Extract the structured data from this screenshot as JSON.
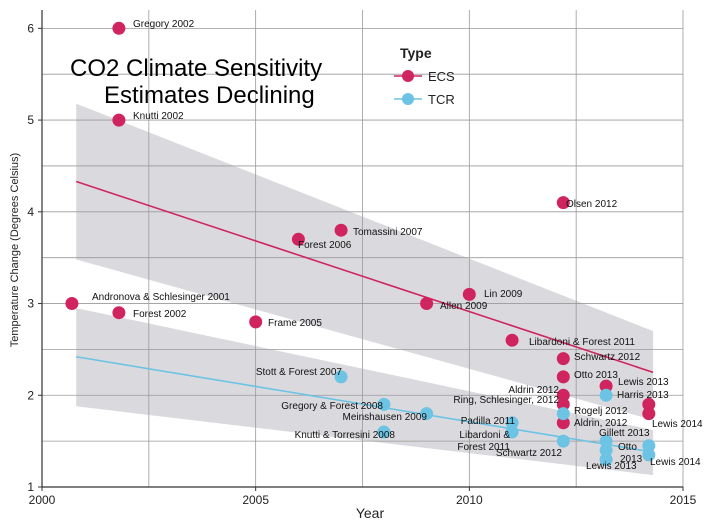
{
  "chart_data": {
    "type": "scatter",
    "title_lines": [
      "CO2 Climate Sensitivity",
      "Estimates Declining"
    ],
    "xlabel": "Year",
    "ylabel": "Temperature Change (Degrees Celsius)",
    "xlim": [
      2000,
      2015
    ],
    "ylim": [
      1,
      6.2
    ],
    "x_ticks": [
      "2000",
      "2005",
      "2010",
      "2015"
    ],
    "y_ticks": [
      "1",
      "2",
      "3",
      "4",
      "5",
      "6"
    ],
    "grid": true,
    "legend": {
      "title": "Type",
      "placement": "top-center"
    },
    "series": [
      {
        "name": "ECS",
        "color": "#d0245e",
        "points": [
          {
            "x": 2001.8,
            "y": 6.0,
            "label": "Gregory 2002"
          },
          {
            "x": 2001.8,
            "y": 5.0,
            "label": "Knutti 2002"
          },
          {
            "x": 2000.7,
            "y": 3.0,
            "label": "Andronova & Schlesinger 2001"
          },
          {
            "x": 2001.8,
            "y": 2.9,
            "label": "Forest 2002"
          },
          {
            "x": 2005.0,
            "y": 2.8,
            "label": "Frame 2005"
          },
          {
            "x": 2006.0,
            "y": 3.7,
            "label": "Forest 2006"
          },
          {
            "x": 2007.0,
            "y": 3.8,
            "label": "Tomassini 2007"
          },
          {
            "x": 2009.0,
            "y": 3.0,
            "label": "Allen 2009"
          },
          {
            "x": 2010.0,
            "y": 3.1,
            "label": "Lin 2009"
          },
          {
            "x": 2012.2,
            "y": 4.1,
            "label": "Olsen 2012"
          },
          {
            "x": 2011.0,
            "y": 2.6,
            "label": "Libardoni & Forest 2011"
          },
          {
            "x": 2012.2,
            "y": 2.4,
            "label": "Schwartz 2012"
          },
          {
            "x": 2012.2,
            "y": 2.2,
            "label": "Otto 2013"
          },
          {
            "x": 2012.2,
            "y": 2.0,
            "label": "Aldrin 2012"
          },
          {
            "x": 2012.2,
            "y": 1.9,
            "label": "Ring, Schlesinger, 2012"
          },
          {
            "x": 2013.2,
            "y": 2.1,
            "label": "Lewis 2013"
          },
          {
            "x": 2012.2,
            "y": 1.7,
            "label": "Aldrin, 2012"
          },
          {
            "x": 2014.2,
            "y": 1.9,
            "label": ""
          },
          {
            "x": 2014.2,
            "y": 1.8,
            "label": "Lewis 2014"
          }
        ],
        "trend": {
          "x": [
            2000.8,
            2014.3
          ],
          "y": [
            4.33,
            2.25
          ]
        }
      },
      {
        "name": "TCR",
        "color": "#6cc3e3",
        "points": [
          {
            "x": 2007.0,
            "y": 2.2,
            "label": "Stott & Forest 2007"
          },
          {
            "x": 2008.0,
            "y": 1.9,
            "label": "Gregory & Forest 2008"
          },
          {
            "x": 2009.0,
            "y": 1.8,
            "label": "Meinshausen 2009"
          },
          {
            "x": 2008.0,
            "y": 1.6,
            "label": "Knutti & Torresini 2008"
          },
          {
            "x": 2011.0,
            "y": 1.7,
            "label": "Padilla 2011"
          },
          {
            "x": 2011.0,
            "y": 1.6,
            "label": "Libardoni & Forest 2011"
          },
          {
            "x": 2012.2,
            "y": 1.8,
            "label": "Rogelj 2012"
          },
          {
            "x": 2012.2,
            "y": 1.5,
            "label": "Schwartz 2012"
          },
          {
            "x": 2013.2,
            "y": 2.0,
            "label": "Harris 2013"
          },
          {
            "x": 2013.2,
            "y": 1.5,
            "label": "Gillett 2013"
          },
          {
            "x": 2013.2,
            "y": 1.4,
            "label": ""
          },
          {
            "x": 2013.2,
            "y": 1.3,
            "label": ""
          },
          {
            "x": 2014.2,
            "y": 1.45,
            "label": ""
          },
          {
            "x": 2014.2,
            "y": 1.35,
            "label": ""
          }
        ],
        "trend": {
          "x": [
            2000.8,
            2014.3
          ],
          "y": [
            2.42,
            1.38
          ]
        }
      }
    ],
    "extra_labels": [
      "Otto",
      "2013",
      "Lewis 2013",
      "Lewis 2014"
    ]
  }
}
